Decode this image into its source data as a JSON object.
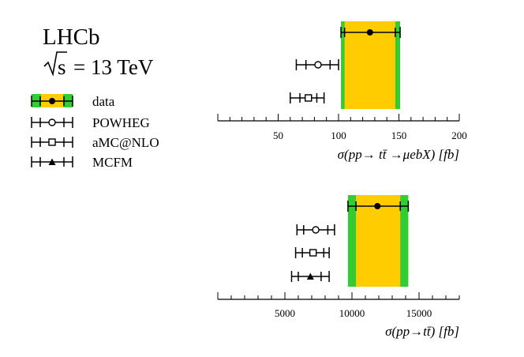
{
  "header": {
    "experiment": "LHCb",
    "energy_rest": "= 13 TeV",
    "energy_s": "s"
  },
  "legend": [
    {
      "label": "data",
      "marker": "filled-circle",
      "band": true
    },
    {
      "label": "POWHEG",
      "marker": "open-circle"
    },
    {
      "label": "aMC@NLO",
      "marker": "open-square"
    },
    {
      "label": "MCFM",
      "marker": "filled-triangle"
    }
  ],
  "colors": {
    "band_inner": "#ffcc00",
    "band_outer": "#33cc33",
    "marker": "#000000"
  },
  "chart_data": [
    {
      "type": "scatter",
      "xlabel": "σ(pp→ tt̄ →μebX) [fb]",
      "xlim": [
        0,
        200
      ],
      "ticks": [
        50,
        100,
        150,
        200
      ],
      "data": {
        "value": 126,
        "stat_low": 105,
        "stat_high": 147,
        "total_low": 102,
        "total_high": 151
      },
      "series": [
        {
          "name": "POWHEG",
          "value": 83,
          "inner": [
            73,
            93
          ],
          "outer": [
            65,
            100
          ]
        },
        {
          "name": "aMC@NLO",
          "value": 75,
          "inner": [
            68,
            82
          ],
          "outer": [
            60,
            88
          ]
        }
      ]
    },
    {
      "type": "scatter",
      "xlabel": "σ(pp→tt̄) [fb]",
      "xlim": [
        0,
        18000
      ],
      "ticks": [
        5000,
        10000,
        15000
      ],
      "data": {
        "value": 11900,
        "stat_low": 10300,
        "stat_high": 13600,
        "total_low": 9700,
        "total_high": 14200
      },
      "series": [
        {
          "name": "POWHEG",
          "value": 7300,
          "inner": [
            6400,
            8200
          ],
          "outer": [
            5900,
            8700
          ]
        },
        {
          "name": "aMC@NLO",
          "value": 7100,
          "inner": [
            6300,
            7900
          ],
          "outer": [
            5800,
            8300
          ]
        },
        {
          "name": "MCFM",
          "value": 6900,
          "inner": [
            6000,
            7700
          ],
          "outer": [
            5500,
            8300
          ]
        }
      ]
    }
  ]
}
